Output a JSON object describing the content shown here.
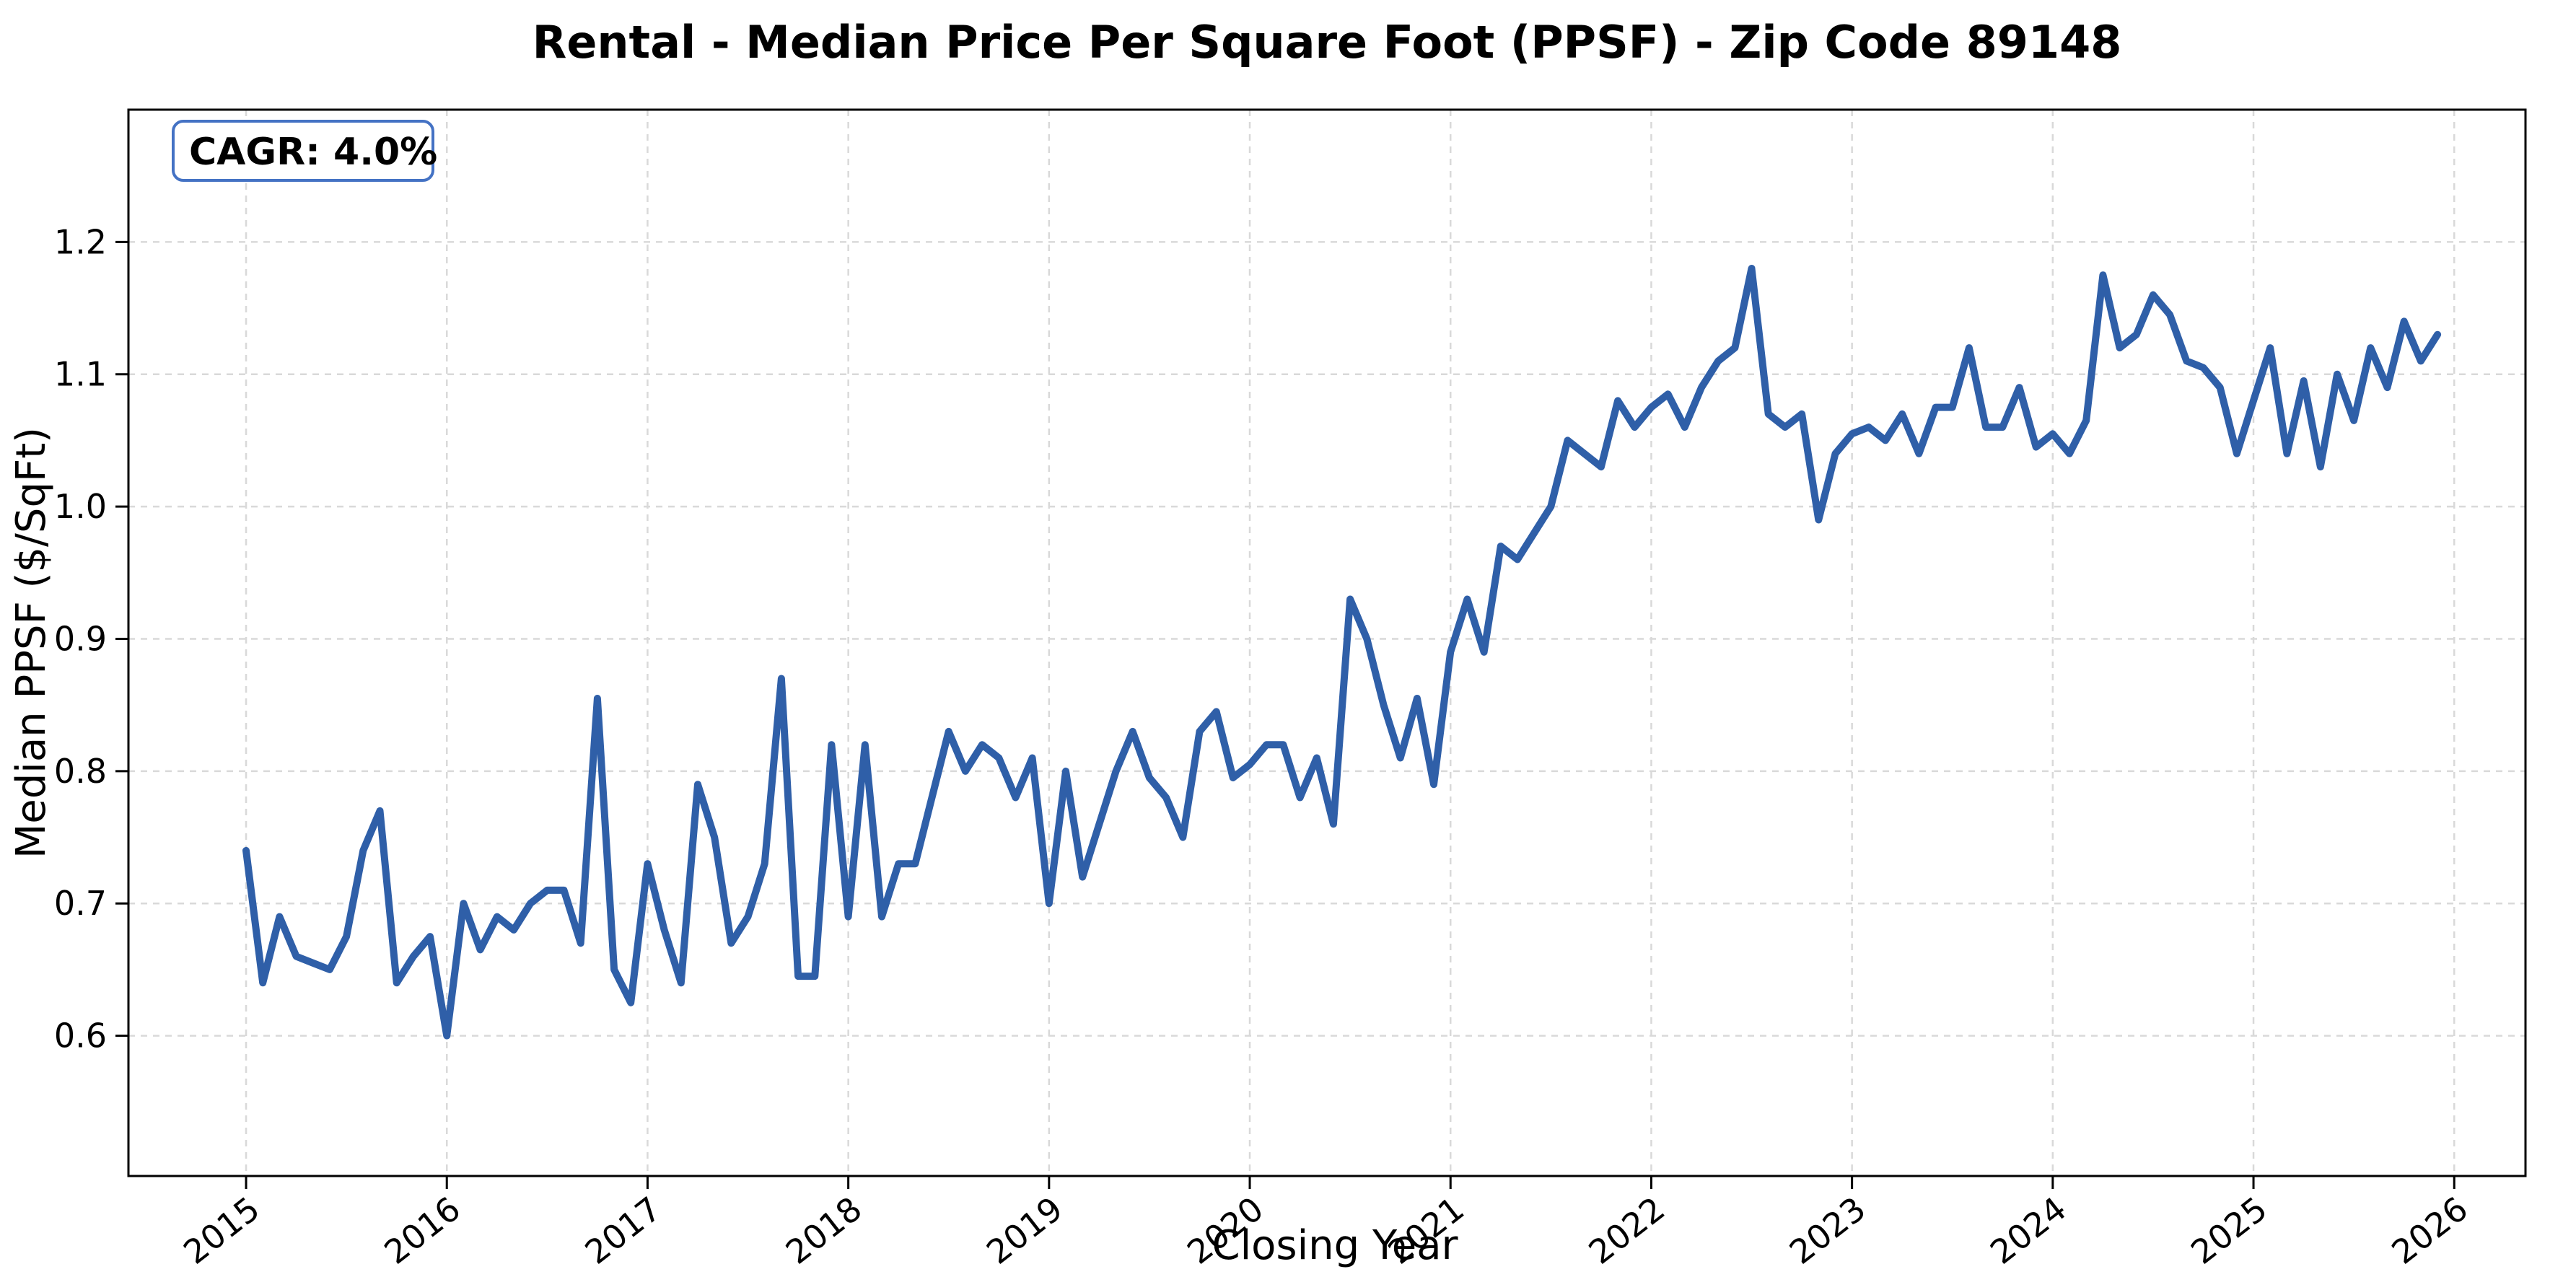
{
  "title": "Rental - Median Price Per Square Foot (PPSF) - Zip Code 89148",
  "annotation": {
    "cagr_label": "CAGR: 4.0%"
  },
  "colors": {
    "line": "#2F5FA8",
    "annotation_border": "#4472C4",
    "grid": "#d9d9d9",
    "spine": "#000000",
    "background": "#ffffff",
    "text": "#000000"
  },
  "chart_data": {
    "type": "line",
    "title": "Rental - Median Price Per Square Foot (PPSF) - Zip Code 89148",
    "xlabel": "Closing Year",
    "ylabel": "Median PPSF ($/SqFt)",
    "legend": false,
    "grid": true,
    "grid_style": "dashed",
    "x_start": "2015-01",
    "frequency": "monthly",
    "x_tick_years": [
      2015,
      2016,
      2017,
      2018,
      2019,
      2020,
      2021,
      2022,
      2023,
      2024,
      2025,
      2026
    ],
    "x_tick_labels": [
      "2015",
      "2016",
      "2017",
      "2018",
      "2019",
      "2020",
      "2021",
      "2022",
      "2023",
      "2024",
      "2025",
      "2026"
    ],
    "y_ticks": [
      0.6,
      0.7,
      0.8,
      0.9,
      1.0,
      1.1,
      1.2
    ],
    "y_tick_labels": [
      "0.6",
      "0.7",
      "0.8",
      "0.9",
      "1.0",
      "1.1",
      "1.2"
    ],
    "ylim": [
      0.494,
      1.3
    ],
    "xlim_years": [
      2014.414,
      2026.355
    ],
    "annotation": "CAGR: 4.0%",
    "series": [
      {
        "name": "Median PPSF ($/SqFt)",
        "months": "Jan 2015 through Dec 2025",
        "values": [
          0.74,
          0.64,
          0.69,
          0.66,
          0.655,
          0.65,
          0.675,
          0.74,
          0.77,
          0.64,
          0.66,
          0.675,
          0.6,
          0.7,
          0.665,
          0.69,
          0.68,
          0.7,
          0.71,
          0.71,
          0.67,
          0.855,
          0.65,
          0.625,
          0.73,
          0.68,
          0.64,
          0.79,
          0.75,
          0.67,
          0.69,
          0.73,
          0.87,
          0.645,
          0.645,
          0.82,
          0.69,
          0.82,
          0.69,
          0.73,
          0.73,
          0.78,
          0.83,
          0.8,
          0.82,
          0.81,
          0.78,
          0.81,
          0.7,
          0.8,
          0.72,
          0.76,
          0.8,
          0.83,
          0.795,
          0.78,
          0.75,
          0.83,
          0.845,
          0.795,
          0.805,
          0.82,
          0.82,
          0.78,
          0.81,
          0.76,
          0.93,
          0.9,
          0.85,
          0.81,
          0.855,
          0.79,
          0.89,
          0.93,
          0.89,
          0.97,
          0.96,
          0.98,
          1.0,
          1.05,
          1.04,
          1.03,
          1.08,
          1.06,
          1.075,
          1.085,
          1.06,
          1.09,
          1.11,
          1.12,
          1.18,
          1.07,
          1.06,
          1.07,
          0.99,
          1.04,
          1.055,
          1.06,
          1.05,
          1.07,
          1.04,
          1.075,
          1.075,
          1.12,
          1.06,
          1.06,
          1.09,
          1.045,
          1.055,
          1.04,
          1.065,
          1.175,
          1.12,
          1.13,
          1.16,
          1.145,
          1.11,
          1.105,
          1.09,
          1.04,
          1.08,
          1.12,
          1.04,
          1.095,
          1.03,
          1.1,
          1.065,
          1.12,
          1.09,
          1.14,
          1.11,
          1.13
        ]
      }
    ]
  }
}
